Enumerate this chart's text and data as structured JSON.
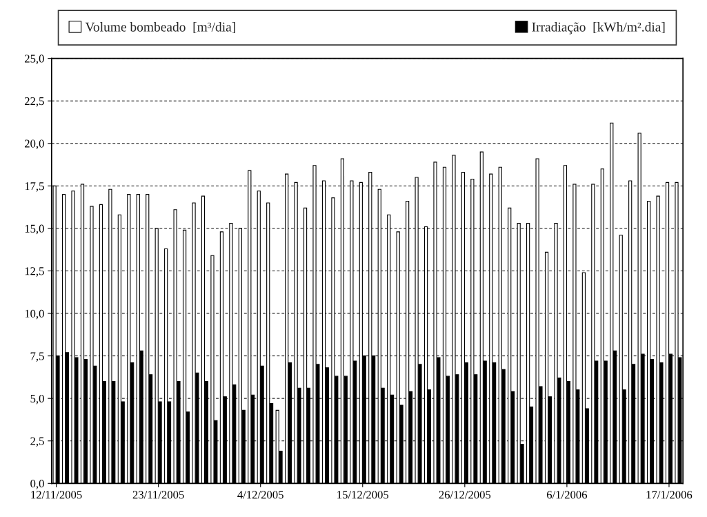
{
  "chart_data": {
    "type": "bar",
    "categories": [
      "12/11/2005",
      null,
      null,
      null,
      null,
      null,
      null,
      null,
      null,
      null,
      null,
      "23/11/2005",
      null,
      null,
      null,
      null,
      null,
      null,
      null,
      null,
      null,
      null,
      "4/12/2005",
      null,
      null,
      null,
      null,
      null,
      null,
      null,
      null,
      null,
      null,
      "15/12/2005",
      null,
      null,
      null,
      null,
      null,
      null,
      null,
      null,
      null,
      null,
      "26/12/2005",
      null,
      null,
      null,
      null,
      null,
      null,
      null,
      null,
      null,
      null,
      "6/1/2006",
      null,
      null,
      null,
      null,
      null,
      null,
      null,
      null,
      null,
      null,
      "17/1/2006",
      null
    ],
    "series": [
      {
        "name": "Volume bombeado  [m³/dia]",
        "color": "#ffffff",
        "values": [
          17.5,
          17.0,
          17.2,
          17.6,
          16.3,
          16.4,
          17.3,
          15.8,
          17.0,
          17.0,
          17.0,
          15.0,
          13.8,
          16.1,
          14.9,
          16.5,
          16.9,
          13.4,
          14.8,
          15.3,
          15.0,
          18.4,
          17.2,
          16.5,
          4.3,
          18.2,
          17.7,
          16.2,
          18.7,
          17.8,
          16.8,
          19.1,
          17.8,
          17.7,
          18.3,
          17.3,
          15.8,
          14.8,
          16.6,
          18.0,
          15.1,
          18.9,
          18.6,
          19.3,
          18.3,
          17.9,
          19.5,
          18.2,
          18.6,
          16.2,
          15.3,
          15.3,
          19.1,
          13.6,
          15.3,
          18.7,
          17.6,
          12.4,
          17.6,
          18.5,
          21.2,
          14.6,
          17.8,
          20.6,
          16.6,
          16.9,
          17.7,
          17.7
        ]
      },
      {
        "name": "Irradiação  [kWh/m².dia]",
        "color": "#000000",
        "values": [
          7.5,
          7.7,
          7.4,
          7.3,
          6.9,
          6.0,
          6.0,
          4.8,
          7.1,
          7.8,
          6.4,
          4.8,
          4.8,
          6.0,
          4.2,
          6.5,
          6.0,
          3.7,
          5.1,
          5.8,
          4.3,
          5.2,
          6.9,
          4.7,
          1.9,
          7.1,
          5.6,
          5.6,
          7.0,
          6.8,
          6.3,
          6.3,
          7.2,
          7.5,
          7.5,
          5.6,
          5.2,
          4.6,
          5.4,
          7.0,
          5.5,
          7.4,
          6.3,
          6.4,
          7.1,
          6.4,
          7.2,
          7.1,
          6.7,
          5.4,
          2.3,
          4.5,
          5.7,
          5.1,
          6.2,
          6.0,
          5.5,
          4.4,
          7.2,
          7.2,
          7.8,
          5.5,
          7.0,
          7.6,
          7.3,
          7.1,
          7.6,
          7.4
        ]
      }
    ],
    "ylim": [
      0,
      25
    ],
    "yticks": [
      {
        "value": 0,
        "label": "0,0"
      },
      {
        "value": 2.5,
        "label": "2,5"
      },
      {
        "value": 5,
        "label": "5,0"
      },
      {
        "value": 7.5,
        "label": "7,5"
      },
      {
        "value": 10,
        "label": "10,0"
      },
      {
        "value": 12.5,
        "label": "12,5"
      },
      {
        "value": 15,
        "label": "15,0"
      },
      {
        "value": 17.5,
        "label": "17,5"
      },
      {
        "value": 20,
        "label": "20,0"
      },
      {
        "value": 22.5,
        "label": "22,5"
      },
      {
        "value": 25,
        "label": "25,0"
      }
    ],
    "grid": "y",
    "legend": "top"
  }
}
